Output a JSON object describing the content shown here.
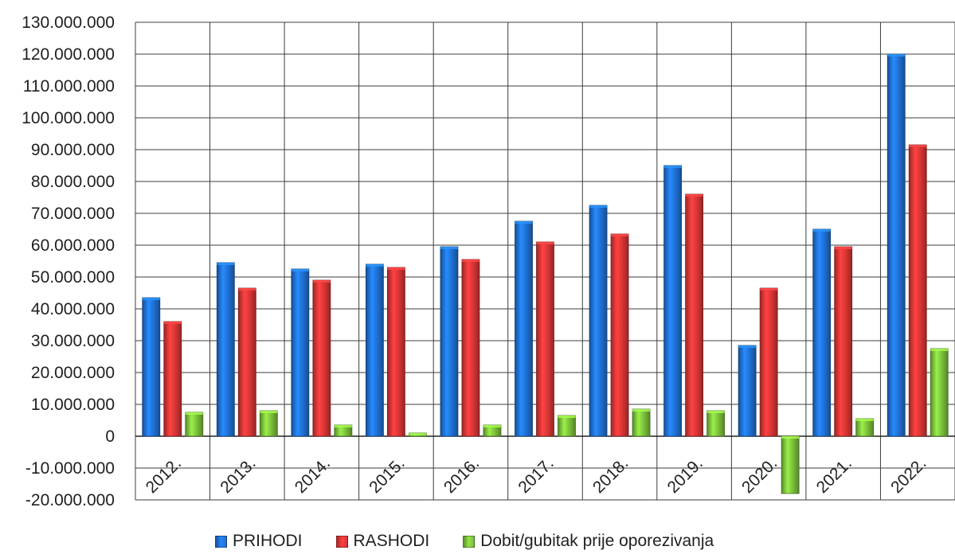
{
  "chart_data": {
    "type": "bar",
    "title": "",
    "xlabel": "",
    "ylabel": "",
    "categories": [
      "2012.",
      "2013.",
      "2014.",
      "2015.",
      "2016.",
      "2017.",
      "2018.",
      "2019.",
      "2020.",
      "2021.",
      "2022."
    ],
    "series": [
      {
        "name": "PRIHODI",
        "color": "#1f6fd1",
        "values": [
          43500000,
          54500000,
          52500000,
          54000000,
          59500000,
          67500000,
          72500000,
          85000000,
          28500000,
          65000000,
          120000000
        ]
      },
      {
        "name": "RASHODI",
        "color": "#d83535",
        "values": [
          36000000,
          46500000,
          49000000,
          53000000,
          55500000,
          61000000,
          63500000,
          76000000,
          46500000,
          59500000,
          91500000
        ]
      },
      {
        "name": "Dobit/gubitak prije oporezivanja",
        "color": "#7bbf3a",
        "values": [
          7500000,
          8000000,
          3500000,
          1000000,
          3500000,
          6500000,
          8500000,
          8000000,
          -18000000,
          5500000,
          27500000
        ]
      }
    ],
    "ylim": [
      -20000000,
      130000000
    ],
    "yticks": [
      {
        "value": 130000000,
        "label": "130.000.000"
      },
      {
        "value": 120000000,
        "label": "120.000.000"
      },
      {
        "value": 110000000,
        "label": "110.000.000"
      },
      {
        "value": 100000000,
        "label": "100.000.000"
      },
      {
        "value": 90000000,
        "label": "90.000.000"
      },
      {
        "value": 80000000,
        "label": "80.000.000"
      },
      {
        "value": 70000000,
        "label": "70.000.000"
      },
      {
        "value": 60000000,
        "label": "60.000.000"
      },
      {
        "value": 50000000,
        "label": "50.000.000"
      },
      {
        "value": 40000000,
        "label": "40.000.000"
      },
      {
        "value": 30000000,
        "label": "30.000.000"
      },
      {
        "value": 20000000,
        "label": "20.000.000"
      },
      {
        "value": 10000000,
        "label": "10.000.000"
      },
      {
        "value": 0,
        "label": "0"
      },
      {
        "value": -10000000,
        "label": "-10.000.000"
      },
      {
        "value": -20000000,
        "label": "-20.000.000"
      }
    ],
    "grid": true,
    "legend_position": "bottom"
  }
}
